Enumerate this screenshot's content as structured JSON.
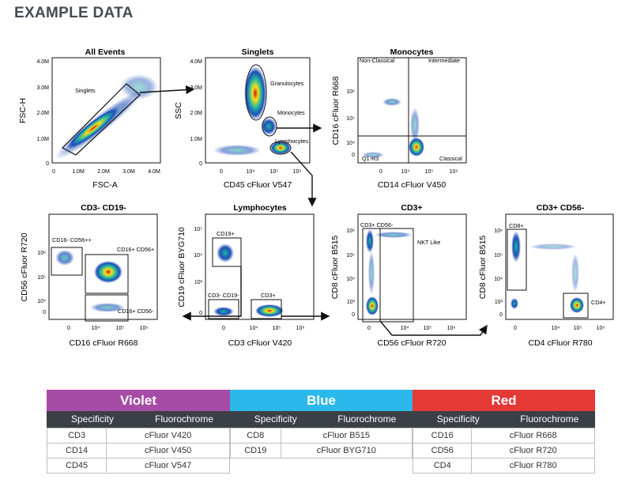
{
  "page": {
    "heading": "EXAMPLE DATA"
  },
  "chart_data": [
    {
      "type": "scatter",
      "title": "All Events",
      "xlabel": "FSC-A",
      "ylabel": "FSC-H",
      "x_ticks": [
        "0",
        "1.0M",
        "2.0M",
        "3.0M",
        "4.0M"
      ],
      "y_ticks": [
        "0",
        "1.0M",
        "2.0M",
        "3.0M",
        "4.0M"
      ],
      "gates": [
        {
          "label": "Singlets"
        }
      ]
    },
    {
      "type": "scatter",
      "title": "Singlets",
      "xlabel": "CD45 cFluor V547",
      "ylabel": "SSC",
      "x_ticks": [
        "0",
        "10⁴",
        "10⁵",
        "10⁶"
      ],
      "y_ticks": [
        "0",
        "1.0M",
        "2.0M",
        "3.0M",
        "4.0M"
      ],
      "gates": [
        {
          "label": "Granulocytes"
        },
        {
          "label": "Monocytes"
        },
        {
          "label": "Lymphocytes"
        }
      ]
    },
    {
      "type": "scatter",
      "title": "Monocytes",
      "xlabel": "CD14 cFluor V450",
      "ylabel": "CD16 cFluor R668",
      "x_ticks": [
        "0",
        "10⁴",
        "10⁵",
        "10⁶"
      ],
      "y_ticks": [
        "0",
        "10⁴",
        "10⁵",
        "10⁶"
      ],
      "gates": [
        {
          "label": "Non-Classical"
        },
        {
          "label": "Intermediate"
        },
        {
          "label": "Q1-R3"
        },
        {
          "label": "Classical"
        }
      ]
    },
    {
      "type": "scatter",
      "title": "CD3- CD19-",
      "xlabel": "CD16 cFluor R668",
      "ylabel": "CD56 cFluor R720",
      "x_ticks": [
        "0",
        "10⁴",
        "10⁵",
        "10⁶"
      ],
      "y_ticks": [
        "0",
        "10⁴",
        "10⁵",
        "10⁶"
      ],
      "gates": [
        {
          "label": "CD16- CD56++"
        },
        {
          "label": "CD16+ CD56+"
        },
        {
          "label": "CD16+ CD56-"
        }
      ]
    },
    {
      "type": "scatter",
      "title": "Lymphocytes",
      "xlabel": "CD3 cFluor V420",
      "ylabel": "CD19 cFluor BYG710",
      "x_ticks": [
        "0",
        "10⁴",
        "10⁵",
        "10⁶"
      ],
      "y_ticks": [
        "0",
        "10³",
        "10⁴",
        "10⁵"
      ],
      "gates": [
        {
          "label": "CD19+"
        },
        {
          "label": "CD3- CD19-"
        },
        {
          "label": "CD3+"
        }
      ]
    },
    {
      "type": "scatter",
      "title": "CD3+",
      "xlabel": "CD56 cFluor R720",
      "ylabel": "CD8 cFluor B515",
      "x_ticks": [
        "0",
        "10⁴",
        "10⁵",
        "10⁶"
      ],
      "y_ticks": [
        "0",
        "10³",
        "10⁴",
        "10⁵",
        "10⁶"
      ],
      "gates": [
        {
          "label": "CD3+ CD56-"
        },
        {
          "label": "NKT Like"
        }
      ]
    },
    {
      "type": "scatter",
      "title": "CD3+ CD56-",
      "xlabel": "CD4 cFluor R780",
      "ylabel": "CD8 cFluor B515",
      "x_ticks": [
        "0",
        "10⁴",
        "10⁵",
        "10⁶"
      ],
      "y_ticks": [
        "0",
        "10³",
        "10⁴",
        "10⁵",
        "10⁶"
      ],
      "gates": [
        {
          "label": "CD8+"
        },
        {
          "label": "CD4+"
        }
      ]
    },
    {
      "type": "table",
      "title": "",
      "columns": [
        "Specificity",
        "Fluorochrome"
      ],
      "groups": [
        {
          "name": "Violet",
          "color": "#a64ca6",
          "rows": [
            [
              "CD3",
              "cFluor V420"
            ],
            [
              "CD14",
              "cFluor V450"
            ],
            [
              "CD45",
              "cFluor V547"
            ]
          ]
        },
        {
          "name": "Blue",
          "color": "#2bb8ea",
          "rows": [
            [
              "CD8",
              "cFluor B515"
            ],
            [
              "CD19",
              "cFluor BYG710"
            ]
          ]
        },
        {
          "name": "Red",
          "color": "#e53935",
          "rows": [
            [
              "CD16",
              "cFluor R668"
            ],
            [
              "CD56",
              "cFluor R720"
            ],
            [
              "CD4",
              "cFluor R780"
            ]
          ]
        }
      ]
    }
  ]
}
